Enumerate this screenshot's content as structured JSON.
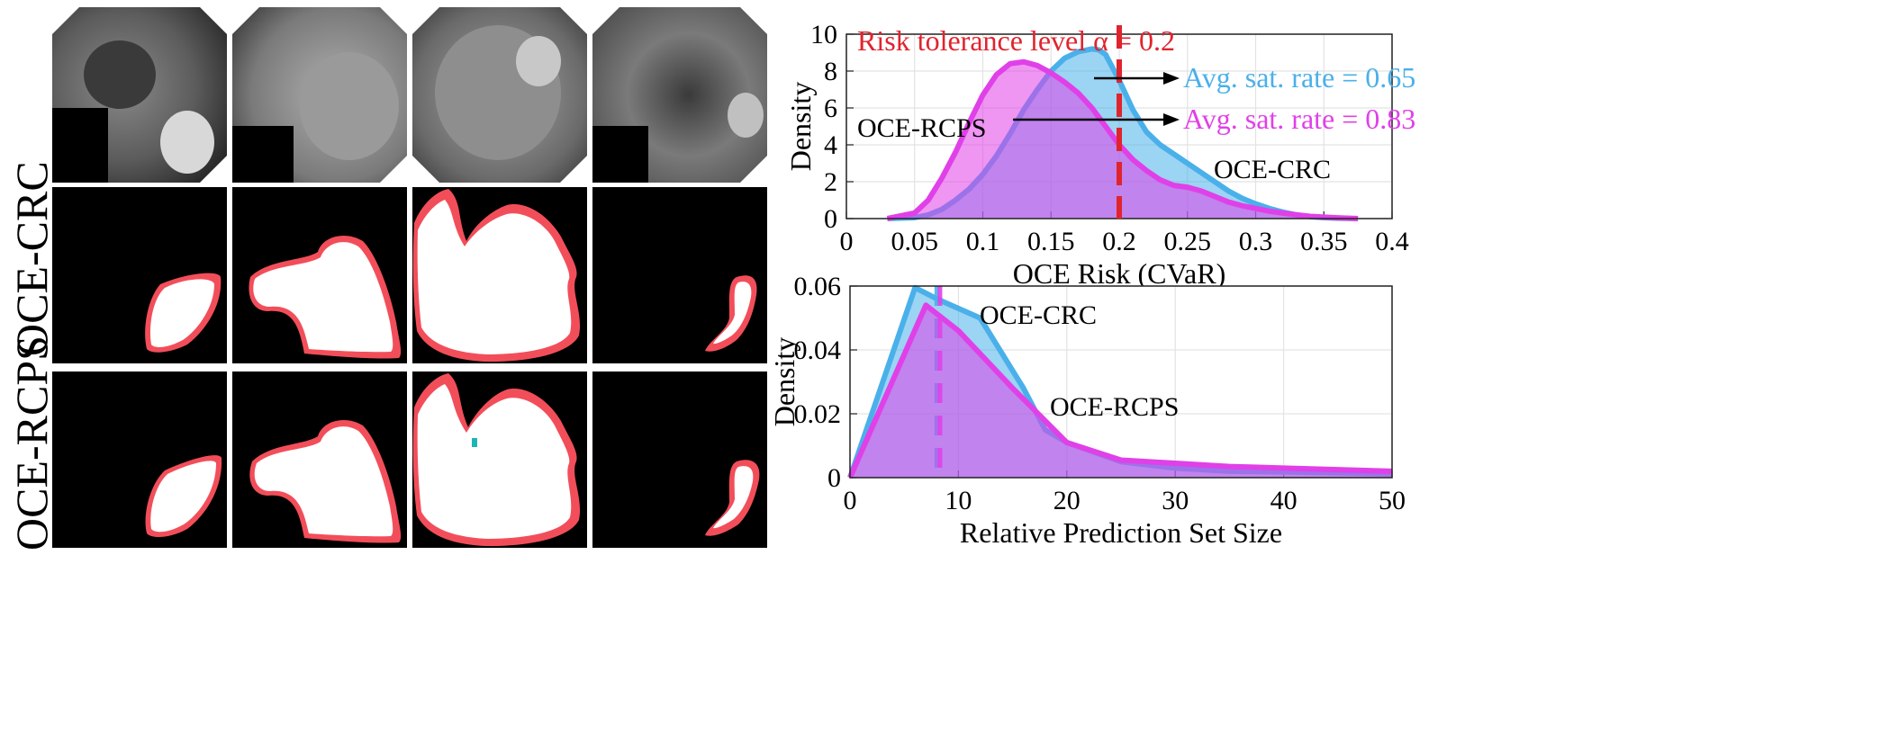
{
  "figure": {
    "row_labels": [
      "OCE-CRC",
      "OCE-RCPS"
    ],
    "colors": {
      "crc": "#4ab0ea",
      "rcps": "#e040e8",
      "risk_line": "#e0242e",
      "mask_edge": "#f24e5a",
      "teal": "#1bb5b5"
    }
  },
  "chart_data": [
    {
      "type": "area",
      "title": "",
      "xlabel": "OCE Risk (CVaR)",
      "ylabel": "Density",
      "xlim": [
        0,
        0.4
      ],
      "ylim": [
        0,
        10
      ],
      "xticks": [
        "0",
        "0.05",
        "0.1",
        "0.15",
        "0.2",
        "0.25",
        "0.3",
        "0.35",
        "0.4"
      ],
      "yticks": [
        "0",
        "2",
        "4",
        "6",
        "8",
        "10"
      ],
      "grid": true,
      "series": [
        {
          "name": "OCE-CRC",
          "x": [
            0.03,
            0.05,
            0.06,
            0.07,
            0.08,
            0.09,
            0.1,
            0.11,
            0.12,
            0.13,
            0.14,
            0.15,
            0.16,
            0.17,
            0.18,
            0.185,
            0.19,
            0.2,
            0.21,
            0.22,
            0.23,
            0.24,
            0.25,
            0.26,
            0.27,
            0.28,
            0.29,
            0.3,
            0.31,
            0.32,
            0.33,
            0.34,
            0.35,
            0.36,
            0.375
          ],
          "y": [
            0,
            0.05,
            0.2,
            0.5,
            1.0,
            1.6,
            2.4,
            3.4,
            4.6,
            5.9,
            7.0,
            8.0,
            8.7,
            9.05,
            9.2,
            9.15,
            8.9,
            7.5,
            5.9,
            4.7,
            4.0,
            3.5,
            3.0,
            2.5,
            2.0,
            1.5,
            1.1,
            0.8,
            0.55,
            0.35,
            0.2,
            0.1,
            0.05,
            0.02,
            0
          ]
        },
        {
          "name": "OCE-RCPS",
          "x": [
            0.03,
            0.05,
            0.06,
            0.07,
            0.08,
            0.09,
            0.1,
            0.11,
            0.12,
            0.13,
            0.14,
            0.15,
            0.16,
            0.17,
            0.18,
            0.19,
            0.2,
            0.21,
            0.22,
            0.23,
            0.24,
            0.25,
            0.26,
            0.27,
            0.28,
            0.29,
            0.3,
            0.31,
            0.32,
            0.33,
            0.34,
            0.35,
            0.36,
            0.375
          ],
          "y": [
            0,
            0.3,
            1.0,
            2.2,
            3.6,
            5.2,
            6.7,
            7.8,
            8.4,
            8.5,
            8.3,
            7.9,
            7.4,
            6.8,
            6.0,
            5.0,
            4.0,
            3.2,
            2.6,
            2.1,
            1.8,
            1.7,
            1.5,
            1.2,
            0.9,
            0.7,
            0.55,
            0.4,
            0.3,
            0.2,
            0.12,
            0.08,
            0.04,
            0
          ]
        }
      ],
      "risk_line": {
        "x": 0.2,
        "label": "Risk tolerance level α = 0.2"
      },
      "annotations": [
        {
          "text": "Avg. sat. rate = 0.65",
          "series": "OCE-CRC"
        },
        {
          "text": "Avg. sat. rate = 0.83",
          "series": "OCE-RCPS"
        },
        {
          "text": "OCE-RCPS",
          "series": "OCE-RCPS"
        },
        {
          "text": "OCE-CRC",
          "series": "OCE-CRC"
        }
      ]
    },
    {
      "type": "area",
      "title": "",
      "xlabel": "Relative Prediction Set Size",
      "ylabel": "Density",
      "xlim": [
        0,
        50
      ],
      "ylim": [
        0,
        0.06
      ],
      "xticks": [
        "0",
        "10",
        "20",
        "30",
        "40",
        "50"
      ],
      "yticks": [
        "0",
        "0.02",
        "0.04",
        "0.06"
      ],
      "grid": true,
      "series": [
        {
          "name": "OCE-CRC",
          "x": [
            0,
            6,
            8,
            12,
            16,
            18,
            20,
            25,
            30,
            35,
            40,
            45,
            50
          ],
          "y": [
            0,
            0.0595,
            0.056,
            0.05,
            0.028,
            0.015,
            0.011,
            0.005,
            0.003,
            0.002,
            0.0018,
            0.0015,
            0.0012
          ],
          "mean": 8
        },
        {
          "name": "OCE-RCPS",
          "x": [
            0,
            7,
            10,
            15,
            20,
            25,
            30,
            35,
            40,
            45,
            50
          ],
          "y": [
            0,
            0.054,
            0.046,
            0.028,
            0.011,
            0.0055,
            0.0045,
            0.0035,
            0.003,
            0.0025,
            0.002
          ],
          "mean": 8.3
        }
      ],
      "annotations": [
        {
          "text": "OCE-CRC",
          "series": "OCE-CRC"
        },
        {
          "text": "OCE-RCPS",
          "series": "OCE-RCPS"
        }
      ]
    }
  ]
}
